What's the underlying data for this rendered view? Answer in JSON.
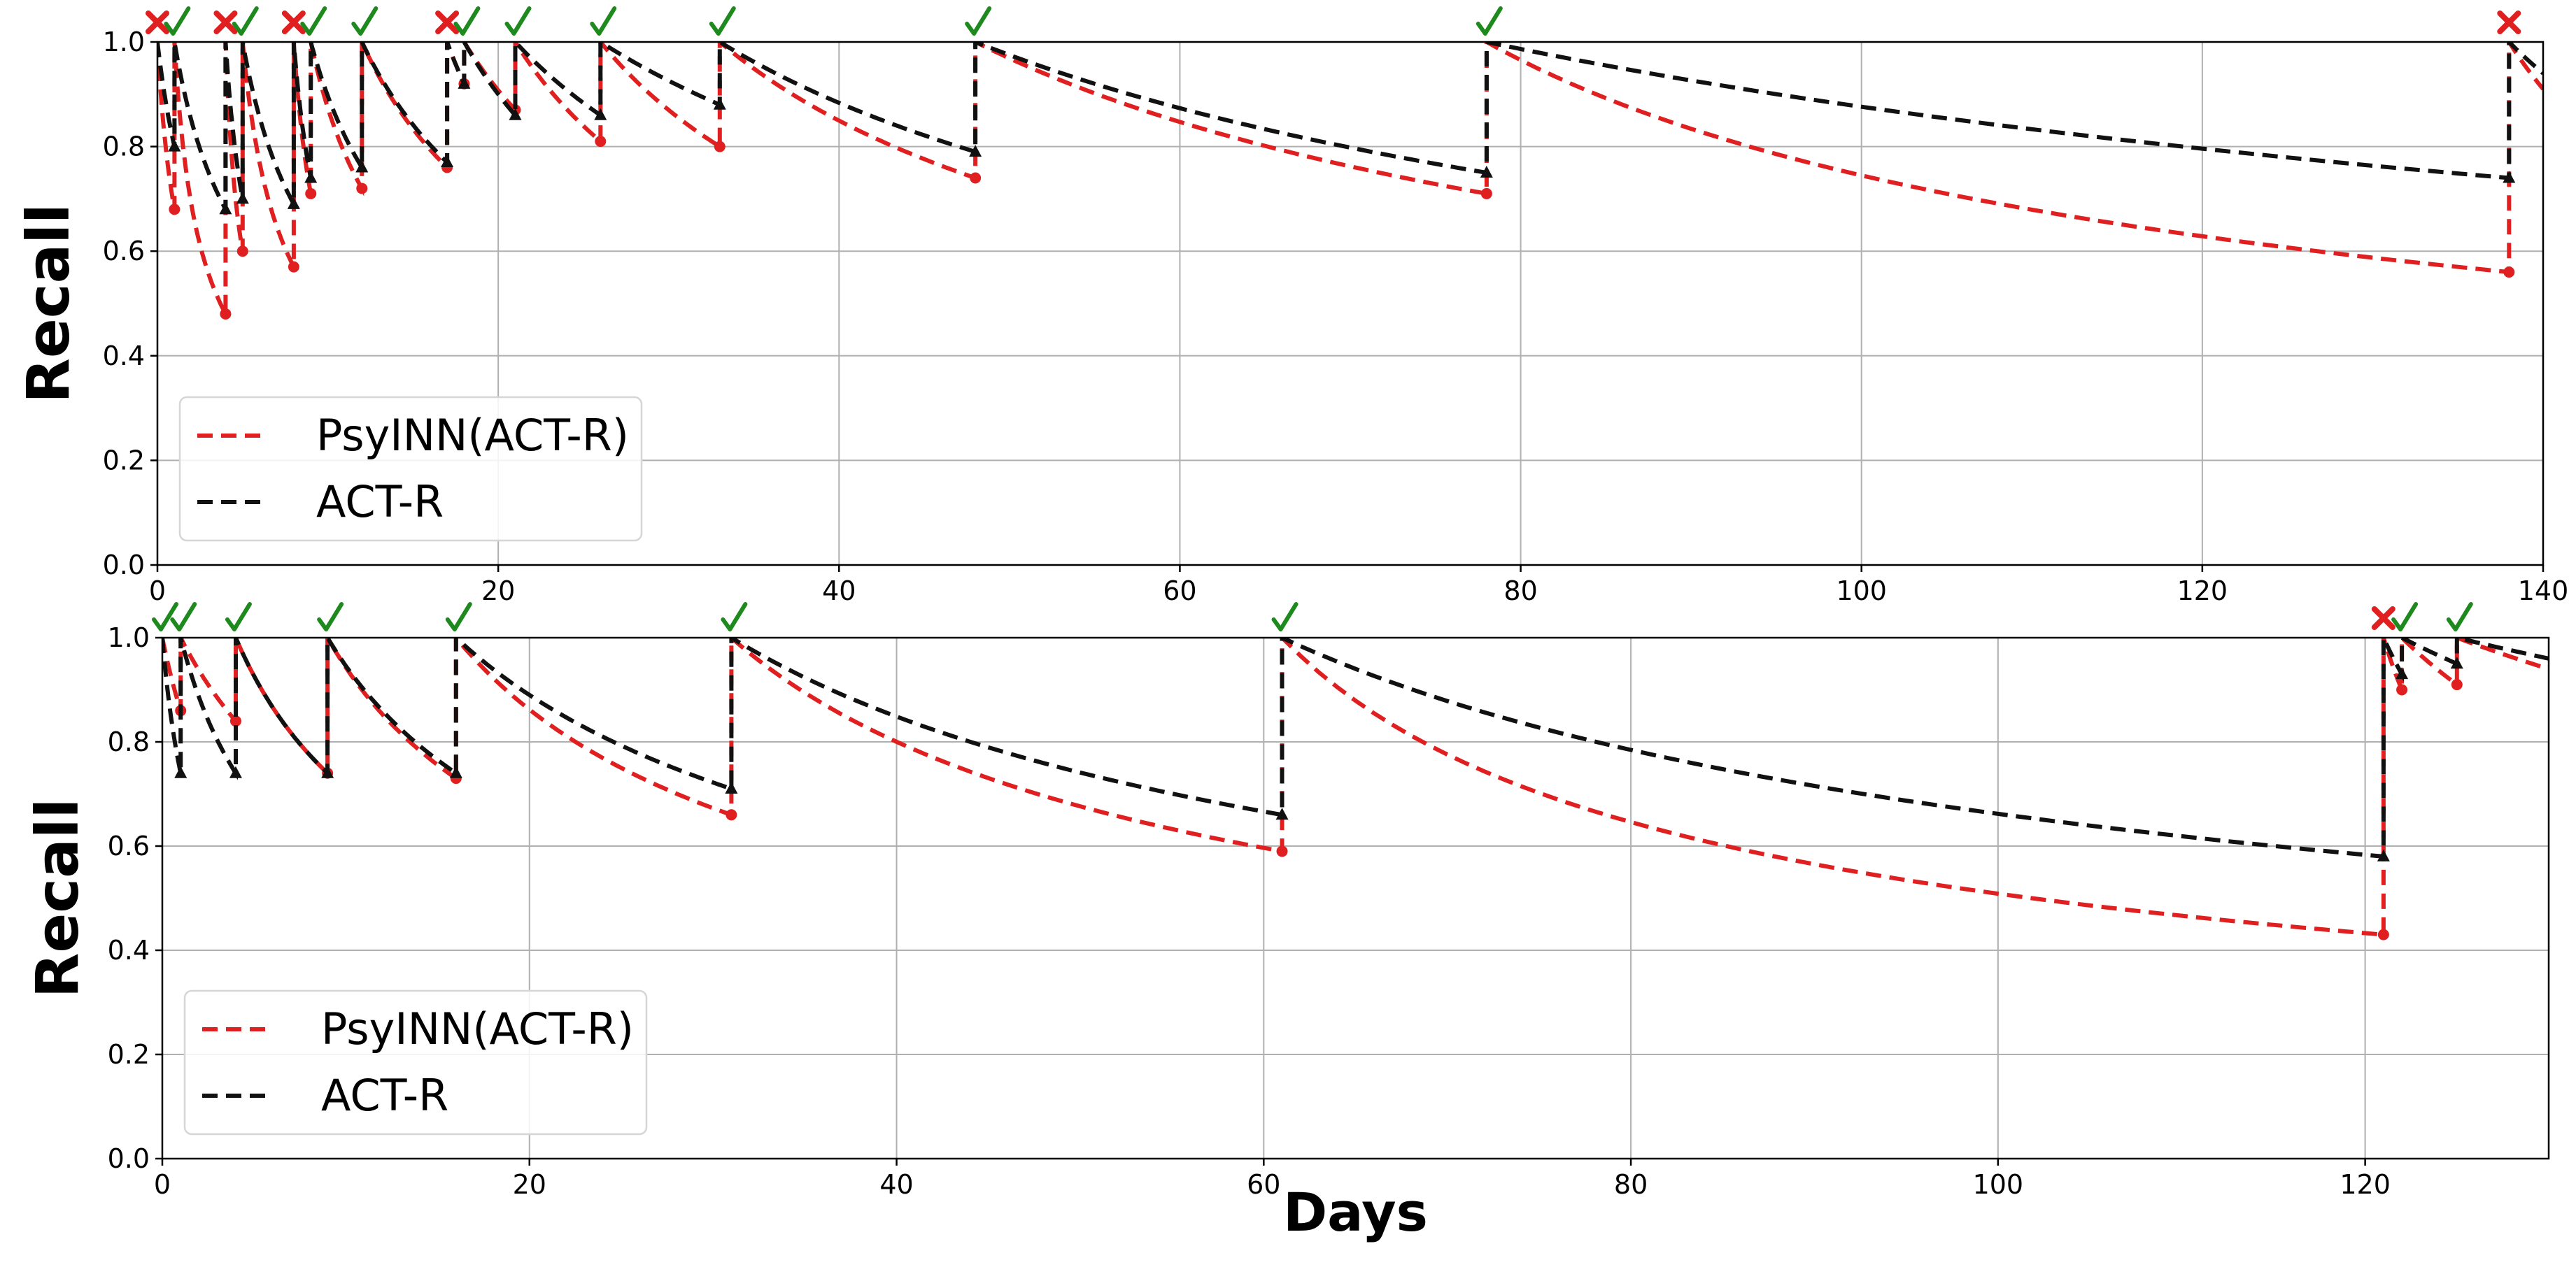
{
  "colors": {
    "psyinn": "#e02020",
    "actr": "#111111",
    "check": "#1e8a1e",
    "cross": "#e02020"
  },
  "chart_data": [
    {
      "type": "line",
      "xlabel": "",
      "ylabel": "Recall",
      "xlim": [
        0,
        140
      ],
      "ylim": [
        0,
        1
      ],
      "xticks": [
        0,
        20,
        40,
        60,
        80,
        100,
        120,
        140
      ],
      "yticks": [
        "0.0",
        "0.2",
        "0.4",
        "0.6",
        "0.8",
        "1.0"
      ],
      "grid": true,
      "legend": {
        "position": "lower-left",
        "entries": [
          "PsyINN(ACT-R)",
          "ACT-R"
        ]
      },
      "review_days": [
        0,
        1,
        4,
        5,
        8,
        9,
        12,
        17,
        18,
        21,
        26,
        33,
        48,
        78,
        138
      ],
      "review_outcomes": [
        "wrong",
        "correct",
        "wrong",
        "correct",
        "wrong",
        "correct",
        "correct",
        "wrong",
        "correct",
        "correct",
        "correct",
        "correct",
        "correct",
        "correct",
        "wrong"
      ],
      "series": [
        {
          "name": "PsyINN(ACT-R)",
          "style": "dashed-circle",
          "recall_before_review": [
            0.68,
            0.48,
            0.6,
            0.57,
            0.71,
            0.72,
            0.76,
            0.92,
            0.87,
            0.81,
            0.8,
            0.74,
            0.71,
            0.56
          ],
          "recall_at_end": 0.91
        },
        {
          "name": "ACT-R",
          "style": "dashed-triangle",
          "recall_before_review": [
            0.8,
            0.68,
            0.7,
            0.69,
            0.74,
            0.76,
            0.77,
            0.92,
            0.86,
            0.86,
            0.88,
            0.79,
            0.75,
            0.74
          ],
          "recall_at_end": 0.94
        }
      ]
    },
    {
      "type": "line",
      "xlabel": "Days",
      "ylabel": "Recall",
      "xlim": [
        0,
        130
      ],
      "ylim": [
        0,
        1
      ],
      "xticks": [
        0,
        20,
        40,
        60,
        80,
        100,
        120
      ],
      "yticks": [
        "0.0",
        "0.2",
        "0.4",
        "0.6",
        "0.8",
        "1.0"
      ],
      "grid": true,
      "legend": {
        "position": "lower-left",
        "entries": [
          "PsyINN(ACT-R)",
          "ACT-R"
        ]
      },
      "review_days": [
        0,
        1,
        4,
        9,
        16,
        31,
        61,
        121,
        122,
        125
      ],
      "review_outcomes": [
        "correct",
        "correct",
        "correct",
        "correct",
        "correct",
        "correct",
        "correct",
        "wrong",
        "correct",
        "correct"
      ],
      "series": [
        {
          "name": "PsyINN(ACT-R)",
          "style": "dashed-circle",
          "recall_before_review": [
            0.86,
            0.84,
            0.74,
            0.73,
            0.66,
            0.59,
            0.43,
            0.9,
            0.91
          ],
          "recall_at_end": 0.94
        },
        {
          "name": "ACT-R",
          "style": "dashed-triangle",
          "recall_before_review": [
            0.74,
            0.74,
            0.74,
            0.74,
            0.71,
            0.66,
            0.58,
            0.93,
            0.95
          ],
          "recall_at_end": 0.96
        }
      ]
    }
  ]
}
